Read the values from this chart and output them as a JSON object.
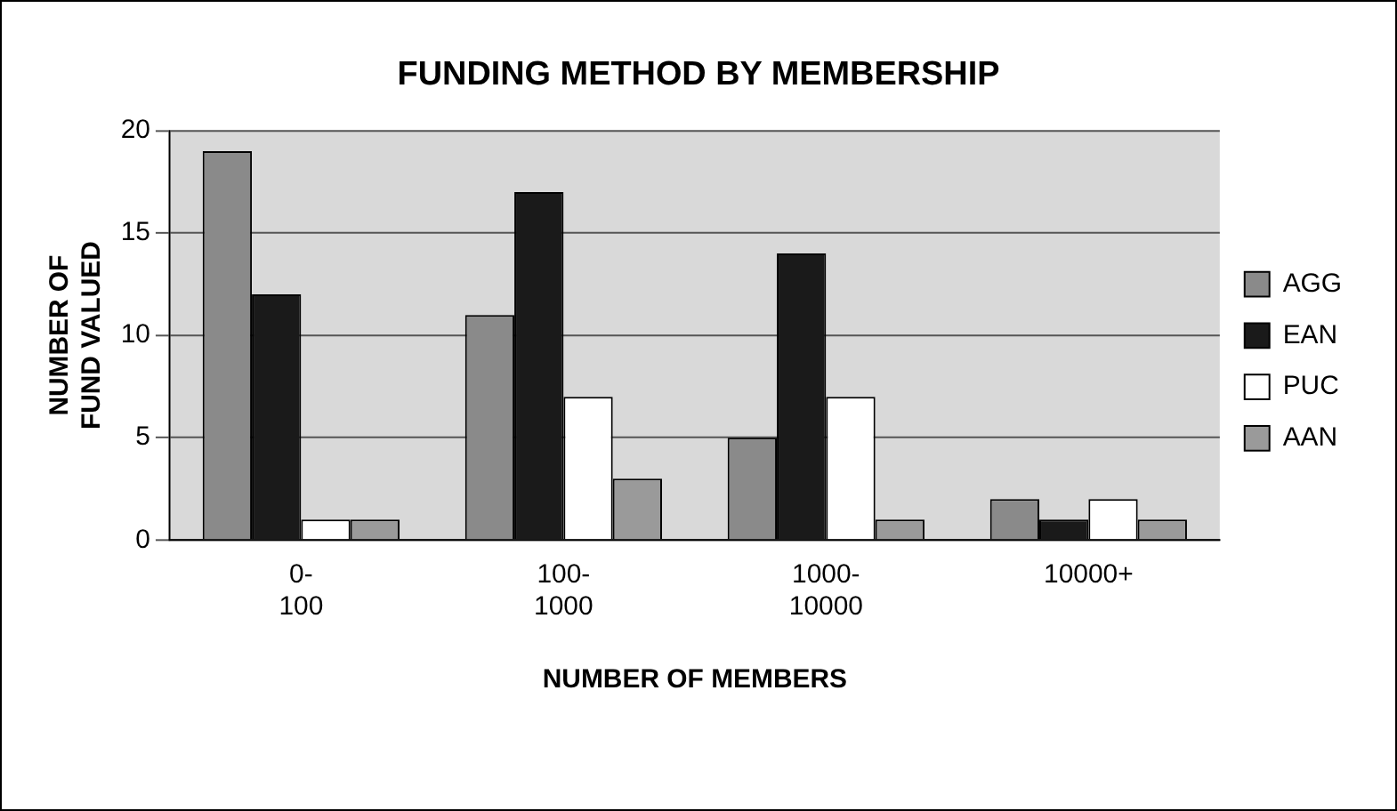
{
  "chart_data": {
    "type": "bar",
    "title": "FUNDING METHOD BY MEMBERSHIP",
    "xlabel": "NUMBER OF MEMBERS",
    "ylabel": "NUMBER OF FUND VALUED",
    "categories": [
      "0-100",
      "100-1000",
      "1000-10000",
      "10000+"
    ],
    "series": [
      {
        "name": "AGG",
        "color": "#8a8a8a",
        "values": [
          19,
          11,
          5,
          2
        ]
      },
      {
        "name": "EAN",
        "color": "#1a1a1a",
        "values": [
          12,
          17,
          14,
          1
        ]
      },
      {
        "name": "PUC",
        "color": "#ffffff",
        "values": [
          1,
          7,
          7,
          2
        ]
      },
      {
        "name": "AAN",
        "color": "#9a9a9a",
        "values": [
          1,
          3,
          1,
          1
        ]
      }
    ],
    "ylim": [
      0,
      20
    ],
    "yticks": [
      0,
      5,
      10,
      15,
      20
    ],
    "grid": "y",
    "legend": "right"
  }
}
